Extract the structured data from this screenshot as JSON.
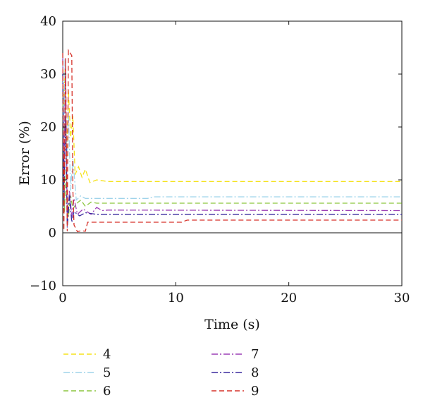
{
  "chart_data": {
    "type": "line",
    "title": "",
    "xlabel": "Time (s)",
    "ylabel": "Error (%)",
    "xlim": [
      0,
      30
    ],
    "ylim": [
      -10,
      40
    ],
    "xticks": [
      0,
      10,
      20,
      30
    ],
    "yticks": [
      -10,
      0,
      10,
      20,
      30,
      40
    ],
    "grid": false,
    "legend_position": "bottom",
    "reference_line_y": 0,
    "series": [
      {
        "name": "4",
        "color": "#f5e21a",
        "dash": "dashed",
        "x": [
          0,
          0.1,
          0.2,
          0.35,
          0.5,
          0.7,
          0.9,
          1.1,
          1.4,
          1.7,
          2.0,
          2.4,
          3.0,
          4.0,
          30
        ],
        "y": [
          30,
          24,
          31,
          13,
          27,
          18,
          22,
          11,
          12.5,
          10.5,
          12,
          9.5,
          10,
          9.7,
          9.7
        ]
      },
      {
        "name": "5",
        "color": "#9fd3ea",
        "dash": "dashdot",
        "x": [
          0,
          0.1,
          0.2,
          0.35,
          0.5,
          0.7,
          0.9,
          1.2,
          1.6,
          2.0,
          7.5,
          8.0,
          30
        ],
        "y": [
          34,
          18,
          33,
          10,
          23,
          8,
          14,
          6.2,
          7,
          6.5,
          6.5,
          6.8,
          6.8
        ]
      },
      {
        "name": "6",
        "color": "#8cc63f",
        "dash": "dashed",
        "x": [
          0,
          0.15,
          0.3,
          0.5,
          0.7,
          0.9,
          1.2,
          1.6,
          2.0,
          2.5,
          3.0,
          30
        ],
        "y": [
          26,
          4,
          12,
          3,
          7,
          4.5,
          5.5,
          6.2,
          5,
          5.8,
          5.6,
          5.6
        ]
      },
      {
        "name": "7",
        "color": "#9b3fb5",
        "dash": "dashdot",
        "x": [
          0,
          0.1,
          0.25,
          0.4,
          0.6,
          0.8,
          1.0,
          1.3,
          1.8,
          2.5,
          3.0,
          3.5,
          4.0,
          30
        ],
        "y": [
          33,
          10,
          31,
          2,
          8,
          3,
          6.5,
          3.5,
          4.5,
          3.5,
          4.8,
          4.2,
          4.3,
          4.2
        ]
      },
      {
        "name": "8",
        "color": "#3a2a9e",
        "dash": "dashdot",
        "x": [
          0,
          0.1,
          0.25,
          0.4,
          0.6,
          0.8,
          1.0,
          1.5,
          2.0,
          3.0,
          30
        ],
        "y": [
          30,
          5,
          22,
          1,
          7,
          2,
          4,
          3.2,
          3.8,
          3.5,
          3.5
        ]
      },
      {
        "name": "9",
        "color": "#d6322a",
        "dash": "dashed",
        "x": [
          0,
          0.1,
          0.25,
          0.4,
          0.5,
          0.65,
          0.8,
          0.9,
          1.0,
          1.3,
          1.6,
          2.0,
          2.2,
          10.5,
          11.0,
          30
        ],
        "y": [
          34,
          0.5,
          33,
          0.3,
          34.5,
          34,
          33.5,
          8,
          1.5,
          0.2,
          0.4,
          0.3,
          2,
          2,
          2.4,
          2.4
        ]
      }
    ]
  }
}
